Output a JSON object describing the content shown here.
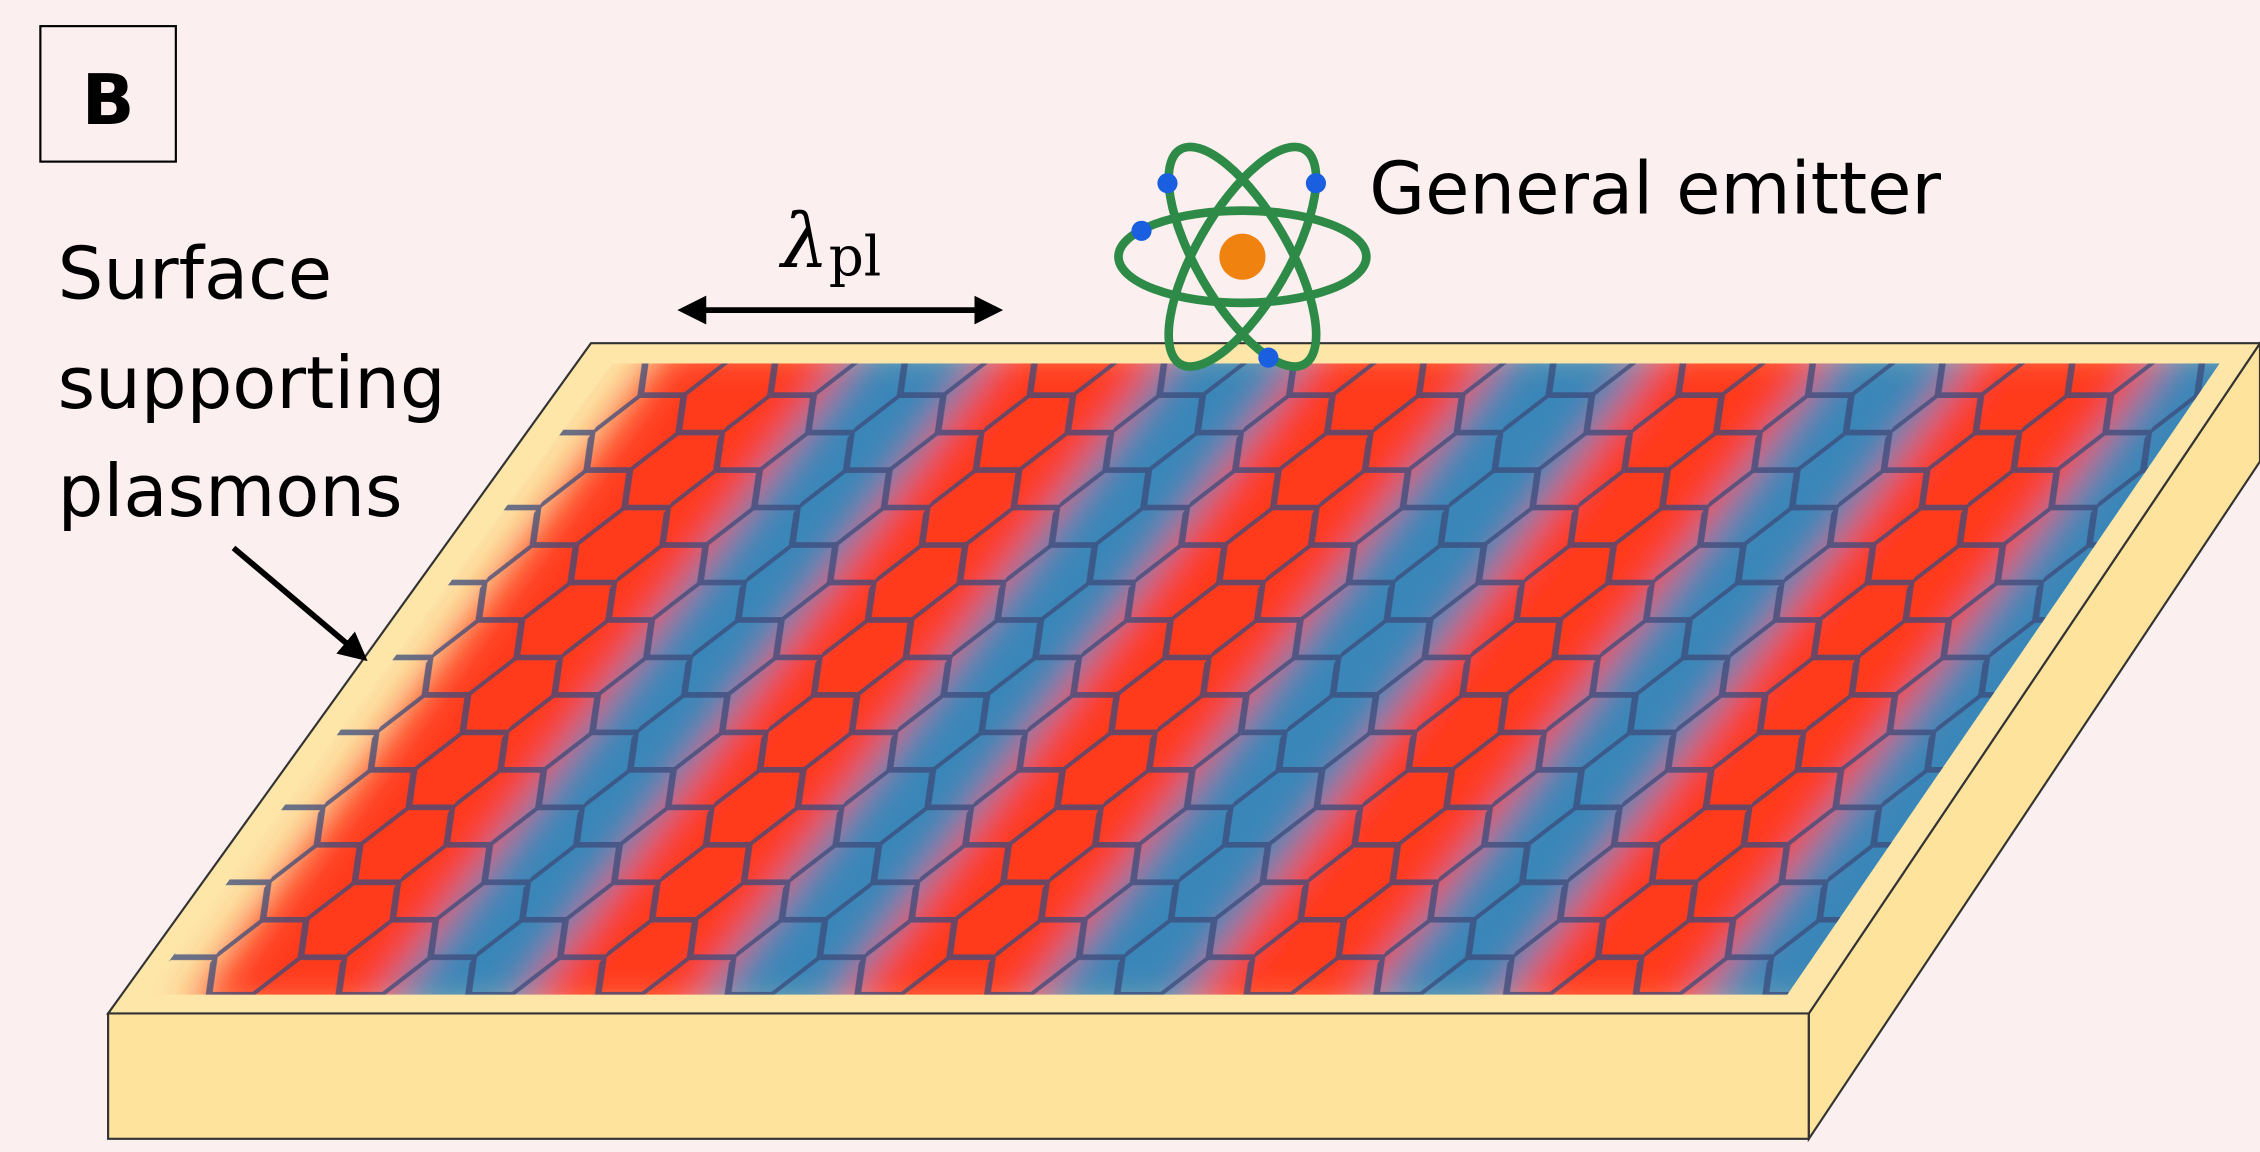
{
  "panel_label": "B",
  "surface_label": [
    "Surface",
    "supporting",
    "plasmons"
  ],
  "wavelength_label": {
    "symbol": "λ",
    "subscript": "pl"
  },
  "emitter_label": "General emitter"
}
